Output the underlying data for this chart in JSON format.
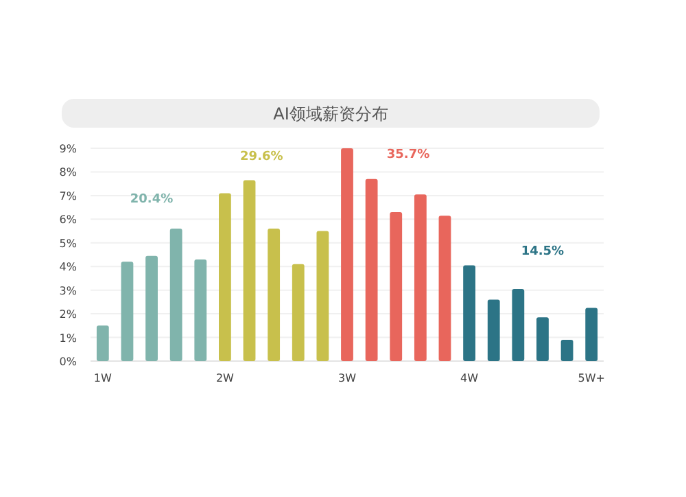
{
  "chart_data": {
    "type": "bar",
    "title": "AI领域薪资分布",
    "categories": [
      "1W",
      null,
      null,
      null,
      null,
      "2W",
      null,
      null,
      null,
      null,
      "3W",
      null,
      null,
      null,
      null,
      "4W",
      null,
      null,
      null,
      null,
      "5W+"
    ],
    "values": [
      1.5,
      4.2,
      4.45,
      5.6,
      4.3,
      7.1,
      7.65,
      5.6,
      4.1,
      5.5,
      9.0,
      7.7,
      6.3,
      7.05,
      6.15,
      4.05,
      2.6,
      3.05,
      1.85,
      0.9,
      2.25
    ],
    "colors": [
      "#80b4ac",
      "#80b4ac",
      "#80b4ac",
      "#80b4ac",
      "#80b4ac",
      "#c8c04c",
      "#c8c04c",
      "#c8c04c",
      "#c8c04c",
      "#c8c04c",
      "#e8665c",
      "#e8665c",
      "#e8665c",
      "#e8665c",
      "#e8665c",
      "#2c7486",
      "#2c7486",
      "#2c7486",
      "#2c7486",
      "#2c7486",
      "#2c7486"
    ],
    "ylim": [
      0,
      9
    ],
    "yticks": [
      {
        "value": 0,
        "label": "0%"
      },
      {
        "value": 1,
        "label": "1%"
      },
      {
        "value": 2,
        "label": "2%"
      },
      {
        "value": 3,
        "label": "3%"
      },
      {
        "value": 4,
        "label": "4%"
      },
      {
        "value": 5,
        "label": "5%"
      },
      {
        "value": 6,
        "label": "6%"
      },
      {
        "value": 7,
        "label": "7%"
      },
      {
        "value": 8,
        "label": "8%"
      },
      {
        "value": 9,
        "label": "9%"
      }
    ],
    "grid": "y",
    "annotations": [
      "20.4%",
      "29.6%",
      "35.7%",
      "14.5%"
    ]
  }
}
